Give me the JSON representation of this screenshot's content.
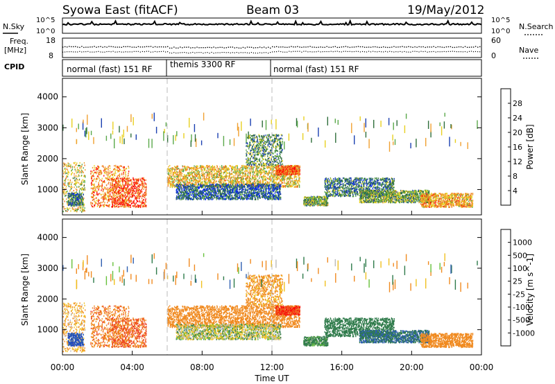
{
  "header": {
    "station": "Syowa East (fitACF)",
    "beam": "Beam 03",
    "date": "19/May/2012"
  },
  "summary_panels": {
    "nsky_label": "N.Sky",
    "nsky_ticks": [
      "10^5",
      "10^0"
    ],
    "nsearch_label": "N.Search",
    "nsearch_ticks": [
      "10^5",
      "10^0"
    ],
    "freq_label_1": "Freq.",
    "freq_label_2": "[MHz]",
    "freq_ticks": [
      "18",
      "8"
    ],
    "nave_label": "Nave",
    "nave_ticks": [
      "60",
      "0"
    ],
    "cpid_label": "CPID"
  },
  "cpid_segments": [
    {
      "label": "normal (fast) 151 RF",
      "start": "00:00",
      "end": "06:00"
    },
    {
      "label": "themis 3300 RF",
      "start": "06:00",
      "end": "12:00"
    },
    {
      "label": "normal (fast) 151 RF",
      "start": "12:00",
      "end": "24:00"
    }
  ],
  "power_panel": {
    "ylabel": "Slant Range [km]",
    "yticks": [
      "4000",
      "3000",
      "2000",
      "1000"
    ],
    "colorbar_label": "Power [dB]",
    "colorbar_ticks": [
      "28",
      "24",
      "20",
      "16",
      "12",
      "8",
      "4"
    ],
    "colors": [
      "#0022ff",
      "#1a3fb0",
      "#2e6e3a",
      "#5aa84a",
      "#e8d020",
      "#f0a030",
      "#f07020",
      "#ff0000"
    ]
  },
  "velocity_panel": {
    "ylabel": "Slant Range [km]",
    "yticks": [
      "4000",
      "3000",
      "2000",
      "1000"
    ],
    "colorbar_label": "Velocity [m s^-1]",
    "colorbar_ticks": [
      "1000",
      "500",
      "100",
      "25",
      "-25",
      "-100",
      "-500",
      "-1000"
    ],
    "colors": [
      "#1a3fc8",
      "#2e5fb0",
      "#2e7a4a",
      "#66c03a",
      "#bbbbbb",
      "#f0c020",
      "#f08a20",
      "#ee4020",
      "#ff0000"
    ]
  },
  "xaxis": {
    "label": "Time UT",
    "ticks": [
      "00:00",
      "04:00",
      "08:00",
      "12:00",
      "16:00",
      "20:00",
      "00:00"
    ]
  },
  "chart_data": {
    "type": "heatmap",
    "title": "Syowa East (fitACF) Beam 03 19/May/2012",
    "xlabel": "Time UT",
    "ylabel": "Slant Range [km]",
    "xlim": [
      "00:00",
      "24:00"
    ],
    "ylim": [
      180,
      4600
    ],
    "power_clim_dB": [
      0,
      32
    ],
    "velocity_clim_ms": [
      -1000,
      1000
    ],
    "echo_regions": [
      {
        "t0": 0.0,
        "t1": 1.3,
        "r0": 300,
        "r1": 1900,
        "power": 18,
        "vel": -100
      },
      {
        "t0": 1.6,
        "t1": 3.8,
        "r0": 450,
        "r1": 1800,
        "power": 24,
        "vel": -300
      },
      {
        "t0": 2.8,
        "t1": 4.8,
        "r0": 450,
        "r1": 1400,
        "power": 28,
        "vel": -400
      },
      {
        "t0": 0.3,
        "t1": 1.2,
        "r0": 500,
        "r1": 900,
        "power": 10,
        "vel": 600
      },
      {
        "t0": 6.0,
        "t1": 13.6,
        "r0": 1100,
        "r1": 1800,
        "power": 20,
        "vel": -200
      },
      {
        "t0": 6.5,
        "t1": 12.5,
        "r0": 700,
        "r1": 1200,
        "power": 8,
        "vel": 0
      },
      {
        "t0": 10.5,
        "t1": 12.6,
        "r0": 1800,
        "r1": 2800,
        "power": 12,
        "vel": -150
      },
      {
        "t0": 12.2,
        "t1": 13.6,
        "r0": 1500,
        "r1": 1800,
        "power": 26,
        "vel": -600
      },
      {
        "t0": 13.8,
        "t1": 15.2,
        "r0": 500,
        "r1": 800,
        "power": 14,
        "vel": 100
      },
      {
        "t0": 15.0,
        "t1": 19.0,
        "r0": 800,
        "r1": 1400,
        "power": 10,
        "vel": 200
      },
      {
        "t0": 17.0,
        "t1": 21.0,
        "r0": 600,
        "r1": 1000,
        "power": 14,
        "vel": 300
      },
      {
        "t0": 20.5,
        "t1": 23.5,
        "r0": 450,
        "r1": 900,
        "power": 22,
        "vel": -250
      }
    ]
  }
}
